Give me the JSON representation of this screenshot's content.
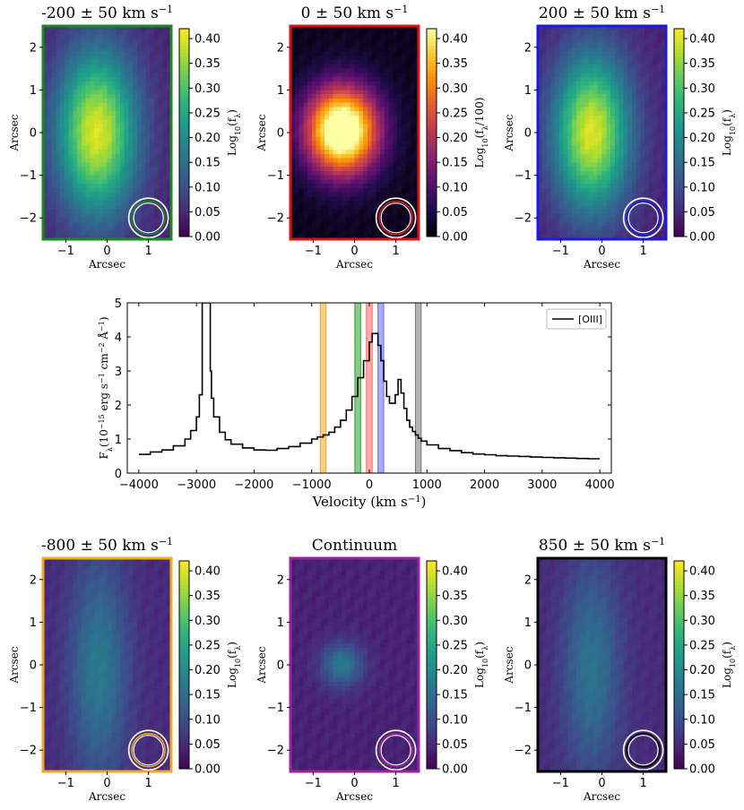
{
  "figure": {
    "description_free": true
  },
  "colorbar_ticks": [
    "0.00",
    "0.05",
    "0.10",
    "0.15",
    "0.20",
    "0.25",
    "0.30",
    "0.35",
    "0.40"
  ],
  "map_axes": {
    "x_ticks": [
      "−1",
      "0",
      "1"
    ],
    "y_ticks": [
      "2",
      "1",
      "0",
      "−1",
      "−2"
    ],
    "xlabel": "Arcsec",
    "ylabel": "Arcsec"
  },
  "panels": [
    {
      "id": "p1",
      "title": "-200 ± 50 km s",
      "title_sup": "−1",
      "cbar_label": "Log",
      "cbar_sub": "10",
      "cbar_tail": "(f",
      "cbar_lam": "λ",
      "cbar_end": ")",
      "border": "#1a8a1a",
      "circle": "#1a8a1a",
      "cmap": "viridis",
      "peak": 0.4,
      "sx": 0.95,
      "sy": 1.9,
      "cx": -0.25,
      "cy": 0.0,
      "floor": 0.04
    },
    {
      "id": "p2",
      "title": "0 ± 50 km s",
      "title_sup": "−1",
      "cbar_label": "Log",
      "cbar_sub": "10",
      "cbar_tail": "(f",
      "cbar_lam": "λ",
      "cbar_end": "/100)",
      "border": "#e01010",
      "circle": "#e01010",
      "cmap": "inferno",
      "peak": 0.52,
      "sx": 0.85,
      "sy": 1.0,
      "cx": -0.3,
      "cy": 0.05,
      "floor": 0.02
    },
    {
      "id": "p3",
      "title": "200 ± 50 km s",
      "title_sup": "−1",
      "cbar_label": "Log",
      "cbar_sub": "10",
      "cbar_tail": "(f",
      "cbar_lam": "λ",
      "cbar_end": ")",
      "border": "#1a1ae0",
      "circle": "#1a1ae0",
      "cmap": "viridis",
      "peak": 0.4,
      "sx": 0.9,
      "sy": 1.8,
      "cx": -0.25,
      "cy": 0.0,
      "floor": 0.04
    },
    {
      "id": "p4",
      "title": "-800 ± 50 km s",
      "title_sup": "−1",
      "cbar_label": "Log",
      "cbar_sub": "10",
      "cbar_tail": "(f",
      "cbar_lam": "λ",
      "cbar_end": ")",
      "border": "#f5a623",
      "circle": "#f5a623",
      "cmap": "viridis",
      "peak": 0.17,
      "sx": 0.7,
      "sy": 2.6,
      "cx": -0.2,
      "cy": -0.1,
      "floor": 0.05
    },
    {
      "id": "p5",
      "title": "Continuum",
      "title_sup": "",
      "cbar_label": "Log",
      "cbar_sub": "10",
      "cbar_tail": "(f",
      "cbar_lam": "λ",
      "cbar_end": ")",
      "border": "#a020a0",
      "circle": "#a020a0",
      "cmap": "viridis",
      "peak": 0.17,
      "sx": 0.5,
      "sy": 0.5,
      "cx": -0.3,
      "cy": 0.0,
      "floor": 0.04
    },
    {
      "id": "p6",
      "title": "850 ± 50 km s",
      "title_sup": "−1",
      "cbar_label": "Log",
      "cbar_sub": "10",
      "cbar_tail": "(f",
      "cbar_lam": "λ",
      "cbar_end": ")",
      "border": "#000000",
      "circle": "#000000",
      "cmap": "viridis",
      "peak": 0.16,
      "sx": 0.7,
      "sy": 2.5,
      "cx": -0.25,
      "cy": -0.1,
      "floor": 0.05
    }
  ],
  "chart_data": {
    "type": "line",
    "title": "",
    "xlabel": "Velocity (km s",
    "xlabel_sup": "−1",
    "xlabel_end": ")",
    "ylabel_parts": [
      "F",
      "λ",
      "(10",
      "−15",
      " erg s",
      "−1",
      " cm",
      "−2",
      " Å",
      "−1",
      ")"
    ],
    "xlim": [
      -4200,
      4200
    ],
    "ylim": [
      0,
      5
    ],
    "x_ticks": [
      -4000,
      -3000,
      -2000,
      -1000,
      0,
      1000,
      2000,
      3000,
      4000
    ],
    "x_tick_labels": [
      "−4000",
      "−3000",
      "−2000",
      "−1000",
      "0",
      "1000",
      "2000",
      "3000",
      "4000"
    ],
    "y_ticks": [
      0,
      1,
      2,
      3,
      4,
      5
    ],
    "y_tick_labels": [
      "0",
      "1",
      "2",
      "3",
      "4",
      "5"
    ],
    "legend": {
      "label": "[OIII]",
      "location": "top-right"
    },
    "series": [
      {
        "name": "[OIII]",
        "x": [
          -4000,
          -3800,
          -3600,
          -3400,
          -3200,
          -3100,
          -3000,
          -2950,
          -2900,
          -2850,
          -2800,
          -2780,
          -2760,
          -2740,
          -2700,
          -2600,
          -2500,
          -2400,
          -2200,
          -2000,
          -1800,
          -1600,
          -1400,
          -1200,
          -1000,
          -900,
          -800,
          -700,
          -600,
          -500,
          -400,
          -300,
          -200,
          -100,
          0,
          50,
          100,
          150,
          200,
          250,
          300,
          350,
          400,
          450,
          500,
          550,
          600,
          650,
          700,
          750,
          800,
          850,
          900,
          1000,
          1200,
          1400,
          1600,
          1800,
          2000,
          2200,
          2400,
          2600,
          2800,
          3000,
          3200,
          3400,
          3600,
          3800,
          4000
        ],
        "values": [
          0.55,
          0.62,
          0.68,
          0.8,
          1.0,
          1.25,
          1.65,
          2.3,
          5.0,
          5.0,
          5.0,
          5.0,
          3.0,
          2.2,
          1.65,
          1.2,
          0.98,
          0.85,
          0.74,
          0.68,
          0.67,
          0.72,
          0.78,
          0.88,
          1.0,
          1.06,
          1.12,
          1.2,
          1.35,
          1.55,
          1.85,
          2.25,
          2.8,
          3.3,
          3.85,
          4.1,
          4.1,
          3.75,
          3.3,
          2.7,
          2.25,
          2.05,
          2.05,
          2.3,
          2.75,
          2.35,
          1.9,
          1.55,
          1.35,
          1.22,
          1.12,
          1.02,
          0.94,
          0.83,
          0.72,
          0.66,
          0.6,
          0.56,
          0.54,
          0.51,
          0.5,
          0.49,
          0.47,
          0.46,
          0.45,
          0.44,
          0.43,
          0.42,
          0.42
        ]
      }
    ],
    "bands": [
      {
        "center": -800,
        "half_width": 50,
        "color": "#f5a623",
        "label": "-800"
      },
      {
        "center": -200,
        "half_width": 50,
        "color": "#2ca02c",
        "label": "-200"
      },
      {
        "center": 0,
        "half_width": 50,
        "color": "#ff6666",
        "label": "0"
      },
      {
        "center": 200,
        "half_width": 50,
        "color": "#6666ff",
        "label": "200"
      },
      {
        "center": 850,
        "half_width": 50,
        "color": "#777777",
        "label": "850"
      }
    ]
  }
}
